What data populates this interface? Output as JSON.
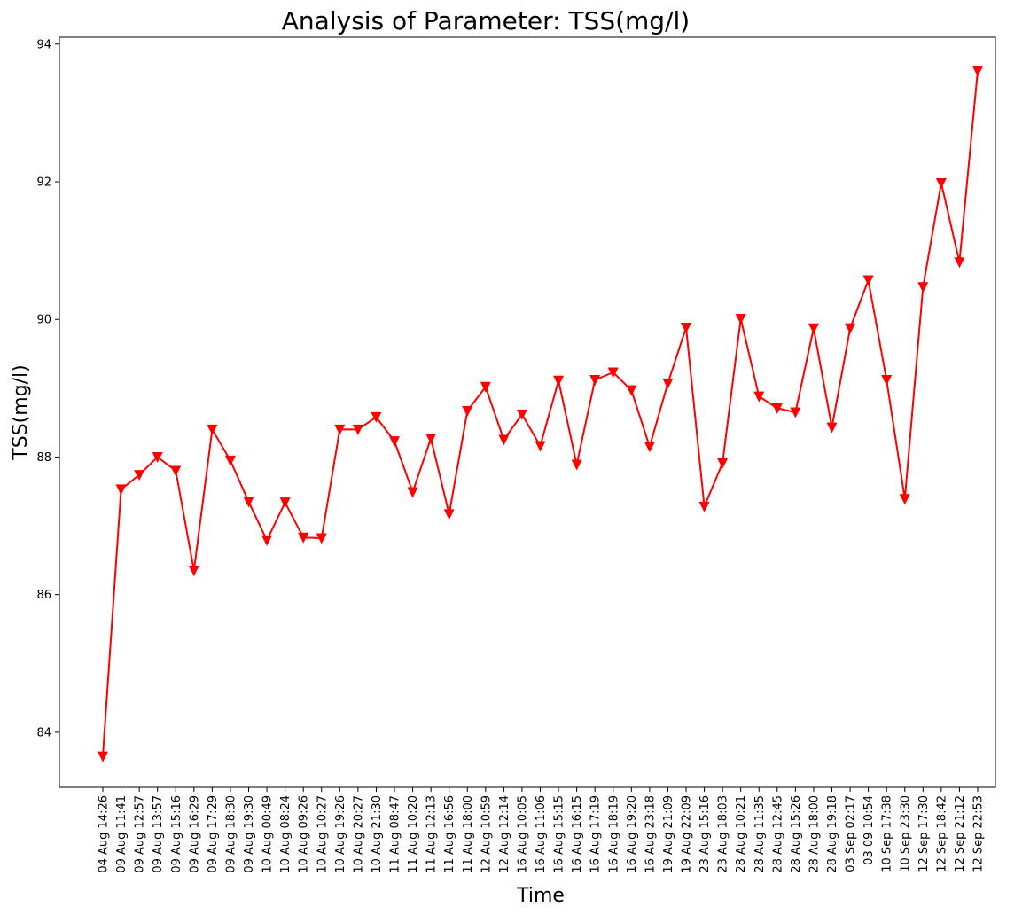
{
  "chart_data": {
    "type": "line",
    "title": "Analysis of Parameter: TSS(mg/l)",
    "xlabel": "Time",
    "ylabel": "TSS(mg/l)",
    "ylim": [
      83.2,
      94.1
    ],
    "yticks": [
      84,
      86,
      88,
      90,
      92,
      94
    ],
    "grid": false,
    "series_color": "#ff0000",
    "marker": "triangle-down",
    "categories": [
      "04 Aug 14:26",
      "09 Aug 11:41",
      "09 Aug 12:57",
      "09 Aug 13:57",
      "09 Aug 15:16",
      "09 Aug 16:29",
      "09 Aug 17:29",
      "09 Aug 18:30",
      "09 Aug 19:30",
      "10 Aug 00:49",
      "10 Aug 08:24",
      "10 Aug 09:26",
      "10 Aug 10:27",
      "10 Aug 19:26",
      "10 Aug 20:27",
      "10 Aug 21:30",
      "11 Aug 08:47",
      "11 Aug 10:20",
      "11 Aug 12:13",
      "11 Aug 16:56",
      "11 Aug 18:00",
      "12 Aug 10:59",
      "12 Aug 12:14",
      "16 Aug 10:05",
      "16 Aug 11:06",
      "16 Aug 15:15",
      "16 Aug 16:15",
      "16 Aug 17:19",
      "16 Aug 18:19",
      "16 Aug 19:20",
      "16 Aug 23:18",
      "19 Aug 21:09",
      "19 Aug 22:09",
      "23 Aug 15:16",
      "23 Aug 18:03",
      "28 Aug 10:21",
      "28 Aug 11:35",
      "28 Aug 12:45",
      "28 Aug 15:26",
      "28 Aug 18:00",
      "28 Aug 19:18",
      "03 Sep 02:17",
      "03 09 10:54",
      "10 Sep 17:38",
      "10 Sep 23:30",
      "12 Sep 17:30",
      "12 Sep 18:42",
      "12 Sep 21:12",
      "12 Sep 22:53"
    ],
    "values": [
      83.65,
      87.53,
      87.74,
      88.0,
      87.8,
      86.35,
      88.4,
      87.95,
      87.35,
      86.79,
      87.34,
      86.83,
      86.82,
      88.4,
      88.4,
      88.58,
      88.23,
      87.49,
      88.27,
      87.17,
      88.67,
      89.02,
      88.25,
      88.62,
      88.16,
      89.11,
      87.89,
      89.12,
      89.23,
      88.97,
      88.15,
      89.07,
      89.88,
      87.28,
      87.91,
      90.01,
      88.88,
      88.71,
      88.65,
      89.87,
      88.43,
      89.87,
      90.57,
      89.12,
      87.39,
      90.47,
      91.98,
      90.83,
      93.61
    ]
  }
}
